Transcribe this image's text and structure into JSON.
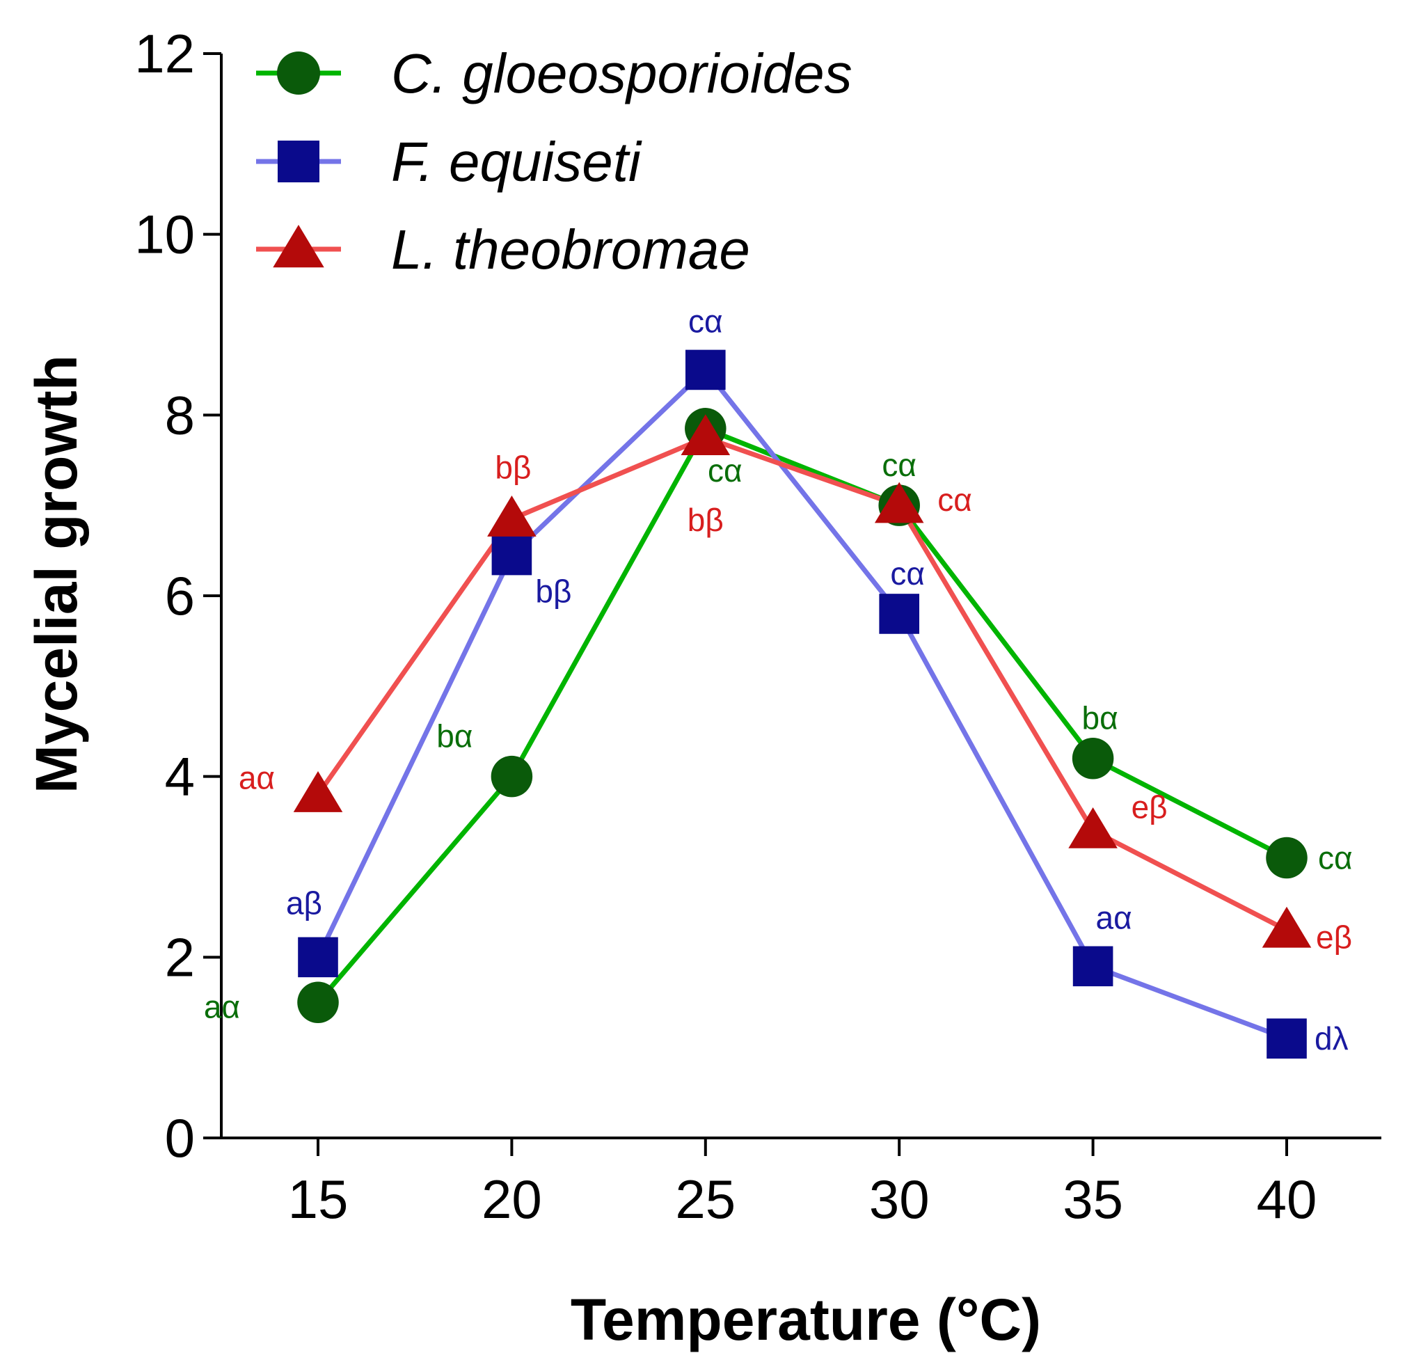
{
  "chart_data": {
    "type": "line",
    "title": "",
    "xlabel": "Temperature (°C)",
    "ylabel": "Mycelial growth",
    "x": [
      15,
      20,
      25,
      30,
      35,
      40
    ],
    "x_tick_labels": [
      "15",
      "20",
      "25",
      "30",
      "35",
      "40"
    ],
    "ylim": [
      0,
      12
    ],
    "y_ticks": [
      0,
      2,
      4,
      6,
      8,
      10,
      12
    ],
    "y_tick_labels": [
      "0",
      "2",
      "4",
      "6",
      "8",
      "10",
      "12"
    ],
    "grid": false,
    "legend_position": "top-left",
    "series": [
      {
        "name": "C. gloeosporioides",
        "marker": "circle",
        "line_color": "#00b400",
        "marker_color": "#0a5a0a",
        "label_color": "#0a6e0a",
        "values": [
          1.5,
          4.0,
          7.85,
          7.0,
          4.2,
          3.1
        ],
        "labels": [
          "aα",
          "bα",
          "cα",
          "cα",
          "bα",
          "cα"
        ]
      },
      {
        "name": "F. equiseti",
        "marker": "square",
        "line_color": "#7474e8",
        "marker_color": "#0a0a8c",
        "label_color": "#1a1aa0",
        "values": [
          2.0,
          6.45,
          8.5,
          5.8,
          1.9,
          1.1
        ],
        "labels": [
          "aβ",
          "bβ",
          "cα",
          "cα",
          "aα",
          "dλ"
        ]
      },
      {
        "name": "L. theobromae",
        "marker": "triangle",
        "line_color": "#f05050",
        "marker_color": "#b40a0a",
        "label_color": "#d81e1e",
        "values": [
          3.8,
          6.85,
          7.75,
          7.0,
          3.4,
          2.3
        ],
        "labels": [
          "aα",
          "bβ",
          "bβ",
          "cα",
          "eβ",
          "eβ"
        ]
      }
    ]
  }
}
